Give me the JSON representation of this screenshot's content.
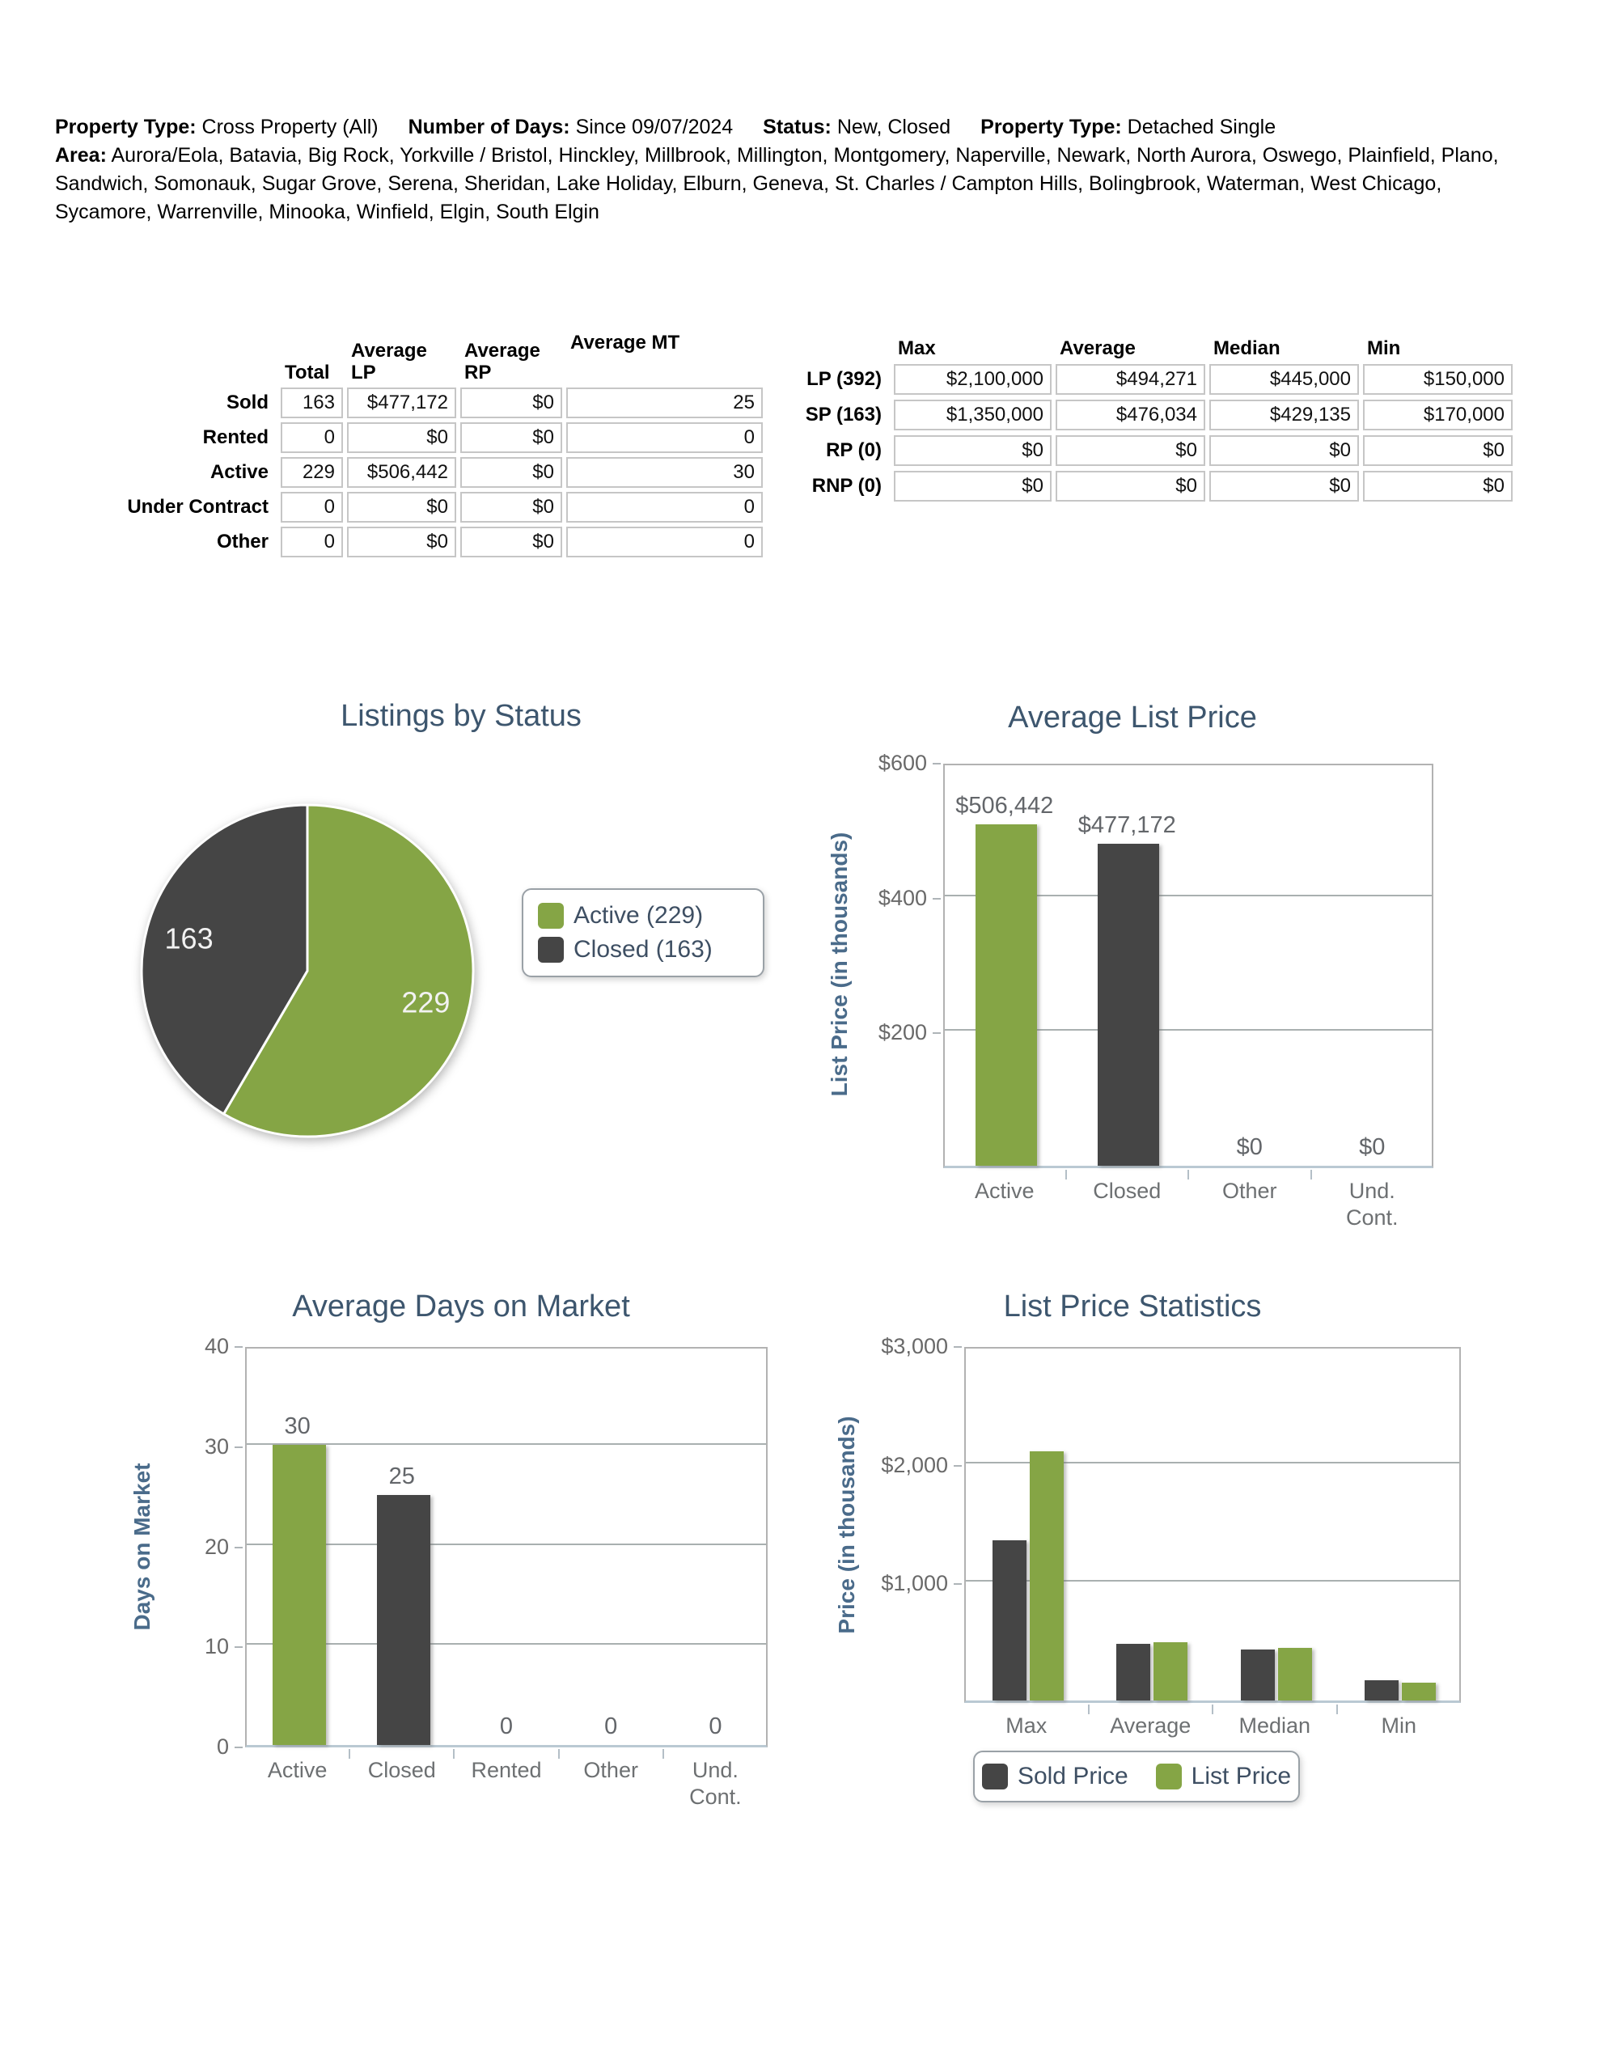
{
  "colors": {
    "green": "#85a545",
    "dark": "#454545",
    "title_blue": "#3d566e",
    "axis_blue": "#4a6b8a"
  },
  "report_header": {
    "property_type_label": "Property Type:",
    "property_type_value": "Cross Property (All)",
    "number_of_days_label": "Number of Days:",
    "number_of_days_value": "Since 09/07/2024",
    "status_label": "Status:",
    "status_value": "New, Closed",
    "property_type2_label": "Property Type:",
    "property_type2_value": "Detached Single",
    "area_label": "Area:",
    "area_value": "Aurora/Eola, Batavia, Big Rock, Yorkville / Bristol, Hinckley, Millbrook, Millington, Montgomery, Naperville, Newark, North Aurora, Oswego, Plainfield, Plano, Sandwich, Somonauk, Sugar Grove, Serena, Sheridan, Lake Holiday, Elburn, Geneva, St. Charles / Campton Hills, Bolingbrook, Waterman, West Chicago, Sycamore, Warrenville, Minooka, Winfield, Elgin, South Elgin"
  },
  "summary_table": {
    "columns": [
      "Total",
      "Average LP",
      "Average RP",
      "Average MT"
    ],
    "rows": [
      {
        "label": "Sold",
        "cells": [
          "163",
          "$477,172",
          "$0",
          "25"
        ]
      },
      {
        "label": "Rented",
        "cells": [
          "0",
          "$0",
          "$0",
          "0"
        ]
      },
      {
        "label": "Active",
        "cells": [
          "229",
          "$506,442",
          "$0",
          "30"
        ]
      },
      {
        "label": "Under Contract",
        "cells": [
          "0",
          "$0",
          "$0",
          "0"
        ]
      },
      {
        "label": "Other",
        "cells": [
          "0",
          "$0",
          "$0",
          "0"
        ]
      }
    ]
  },
  "price_stats_table": {
    "columns": [
      "Max",
      "Average",
      "Median",
      "Min"
    ],
    "rows": [
      {
        "label": "LP (392)",
        "cells": [
          "$2,100,000",
          "$494,271",
          "$445,000",
          "$150,000"
        ]
      },
      {
        "label": "SP (163)",
        "cells": [
          "$1,350,000",
          "$476,034",
          "$429,135",
          "$170,000"
        ]
      },
      {
        "label": "RP (0)",
        "cells": [
          "$0",
          "$0",
          "$0",
          "$0"
        ]
      },
      {
        "label": "RNP (0)",
        "cells": [
          "$0",
          "$0",
          "$0",
          "$0"
        ]
      }
    ]
  },
  "chart_data": [
    {
      "type": "pie",
      "title": "Listings by Status",
      "labels": [
        "Active",
        "Closed"
      ],
      "values": [
        229,
        163
      ],
      "slice_labels": [
        "229",
        "163"
      ],
      "colors": [
        "#85a545",
        "#454545"
      ],
      "legend": [
        {
          "label": "Active (229)",
          "color": "#85a545"
        },
        {
          "label": "Closed (163)",
          "color": "#454545"
        }
      ],
      "legend_position": "right"
    },
    {
      "type": "bar",
      "title": "Average List Price",
      "ylabel": "List Price (in thousands)",
      "categories": [
        "Active",
        "Closed",
        "Other",
        "Und.\nCont."
      ],
      "values": [
        506.442,
        477.172,
        0,
        0
      ],
      "value_labels": [
        "$506,442",
        "$477,172",
        "$0",
        "$0"
      ],
      "bar_colors": [
        "#85a545",
        "#454545",
        "#85a545",
        "#454545"
      ],
      "ylim": [
        0,
        600
      ],
      "grid": true,
      "yticks": [
        {
          "label": "$600",
          "value": 600
        },
        {
          "label": "$400",
          "value": 400
        },
        {
          "label": "$200",
          "value": 200
        }
      ]
    },
    {
      "type": "bar",
      "title": "Average Days on Market",
      "ylabel": "Days on Market",
      "categories": [
        "Active",
        "Closed",
        "Rented",
        "Other",
        "Und.\nCont."
      ],
      "values": [
        30,
        25,
        0,
        0,
        0
      ],
      "value_labels": [
        "30",
        "25",
        "0",
        "0",
        "0"
      ],
      "bar_colors": [
        "#85a545",
        "#454545",
        "#85a545",
        "#454545",
        "#85a545"
      ],
      "ylim": [
        0,
        40
      ],
      "grid": true,
      "yticks": [
        {
          "label": "40",
          "value": 40
        },
        {
          "label": "30",
          "value": 30
        },
        {
          "label": "20",
          "value": 20
        },
        {
          "label": "10",
          "value": 10
        },
        {
          "label": "0",
          "value": 0
        }
      ]
    },
    {
      "type": "bar",
      "title": "List Price Statistics",
      "ylabel": "Price (in thousands)",
      "categories": [
        "Max",
        "Average",
        "Median",
        "Min"
      ],
      "series": [
        {
          "name": "Sold Price",
          "color": "#454545",
          "values": [
            1350,
            476.034,
            429.135,
            170
          ]
        },
        {
          "name": "List Price",
          "color": "#85a545",
          "values": [
            2100,
            494.271,
            445,
            150
          ]
        }
      ],
      "ylim": [
        0,
        3000
      ],
      "grid": true,
      "legend_position": "bottom",
      "yticks": [
        {
          "label": "$3,000",
          "value": 3000
        },
        {
          "label": "$2,000",
          "value": 2000
        },
        {
          "label": "$1,000",
          "value": 1000
        }
      ]
    }
  ]
}
